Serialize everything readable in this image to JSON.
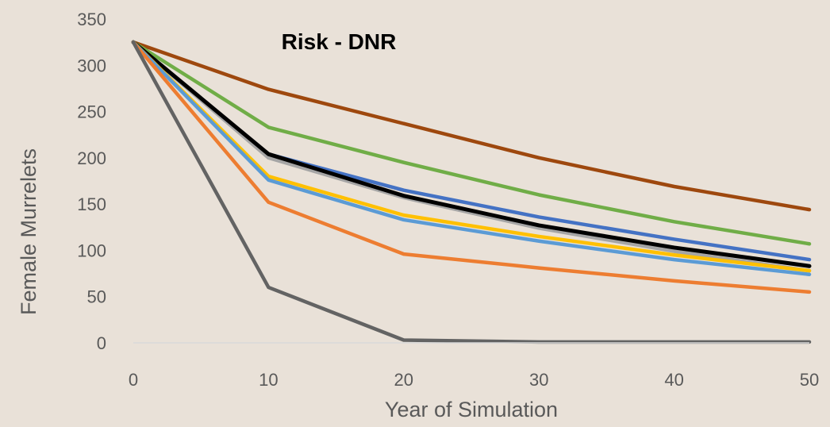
{
  "chart_data": {
    "type": "line",
    "title": "Risk - DNR",
    "xlabel": "Year of Simulation",
    "ylabel": "Female Murrelets",
    "xlim": [
      0,
      50
    ],
    "ylim": [
      0,
      350
    ],
    "x_ticks": [
      0,
      10,
      20,
      30,
      40,
      50
    ],
    "y_ticks": [
      0,
      50,
      100,
      150,
      200,
      250,
      300,
      350
    ],
    "grid": false,
    "x": [
      0,
      10,
      20,
      30,
      40,
      50
    ],
    "series": [
      {
        "color": "#9e480e",
        "values": [
          325,
          274,
          237,
          200,
          169,
          144
        ]
      },
      {
        "color": "#70ad47",
        "values": [
          325,
          233,
          195,
          160,
          131,
          107
        ]
      },
      {
        "color": "#4472c4",
        "values": [
          325,
          204,
          165,
          136,
          112,
          90
        ]
      },
      {
        "color": "#a5a5a5",
        "values": [
          325,
          200,
          157,
          124,
          99,
          78
        ]
      },
      {
        "color": "#000000",
        "values": [
          325,
          204,
          159,
          127,
          103,
          83
        ]
      },
      {
        "color": "#ffc000",
        "values": [
          325,
          180,
          138,
          115,
          95,
          78
        ]
      },
      {
        "color": "#5b9bd5",
        "values": [
          325,
          176,
          133,
          110,
          90,
          74
        ]
      },
      {
        "color": "#ed7d31",
        "values": [
          325,
          152,
          96,
          81,
          67,
          55
        ]
      },
      {
        "color": "#636363",
        "values": [
          325,
          60,
          3,
          1,
          1,
          1
        ]
      }
    ]
  }
}
